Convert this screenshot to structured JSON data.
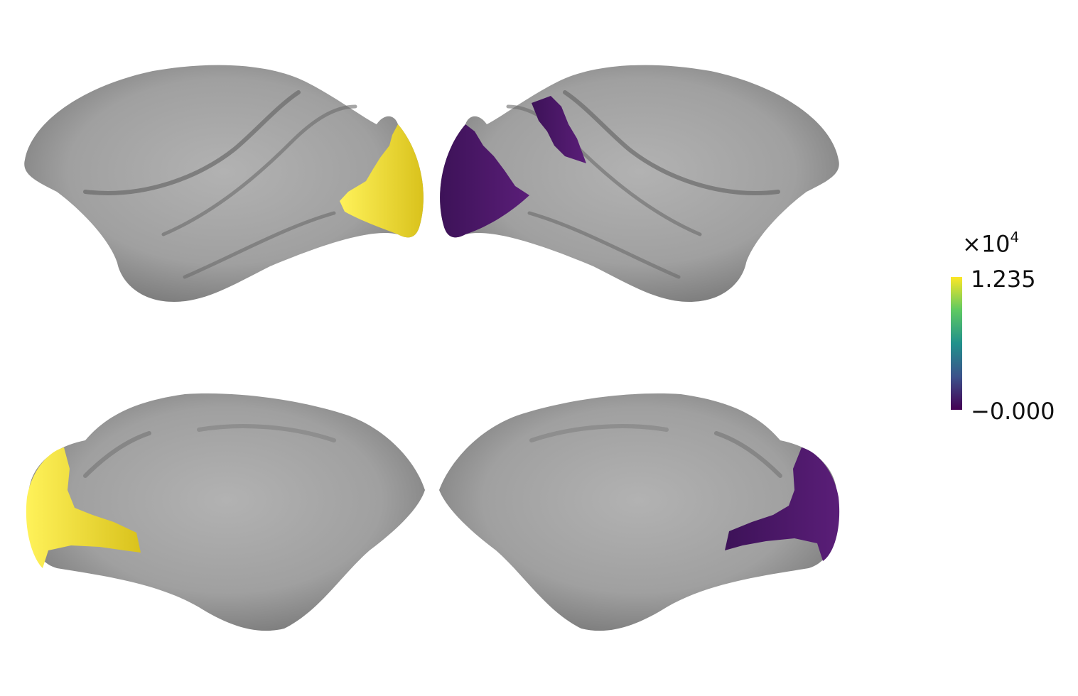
{
  "figure": {
    "panels": [
      {
        "name": "left-hemisphere-lateral",
        "highlight_color": "#f2e035",
        "highlight_label": "max"
      },
      {
        "name": "right-hemisphere-lateral",
        "highlight_color": "#4a1865",
        "highlight_label": "min"
      },
      {
        "name": "left-hemisphere-medial",
        "highlight_color": "#f2e035",
        "highlight_label": "max"
      },
      {
        "name": "right-hemisphere-medial",
        "highlight_color": "#4a1865",
        "highlight_label": "min"
      }
    ],
    "surface_color": "#a3a3a3"
  },
  "colorbar": {
    "multiplier_base": "×10",
    "multiplier_exponent": "4",
    "max_label": "1.235",
    "min_label": "−0.000",
    "colormap": "viridis",
    "stops": [
      "#440154",
      "#3b528b",
      "#21918c",
      "#5ec962",
      "#fde725"
    ]
  }
}
